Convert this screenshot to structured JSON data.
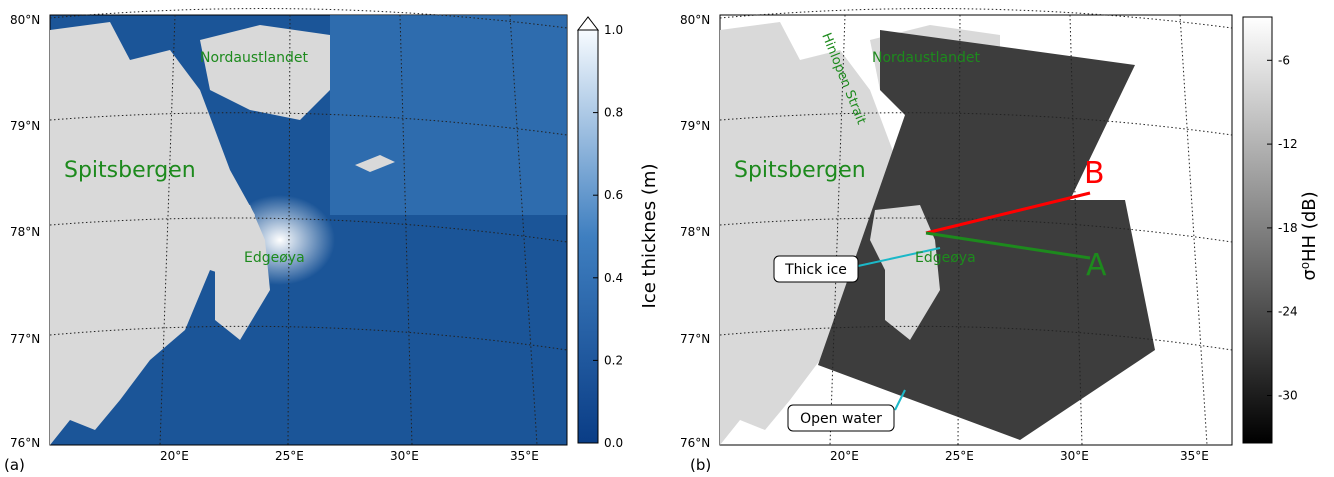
{
  "panels": [
    {
      "label": "(a)",
      "lat_labels": [
        "80°N",
        "79°N",
        "78°N",
        "77°N",
        "76°N"
      ],
      "lon_labels": [
        "20°E",
        "25°E",
        "30°E",
        "35°E"
      ],
      "places": [
        "Nordaustlandet",
        "Spitsbergen",
        "Edgeøya"
      ],
      "colorbar": {
        "title": "Ice thicknes (m)",
        "range": [
          0,
          1
        ],
        "ticks": [
          {
            "value": 0,
            "label": "0.0"
          },
          {
            "value": 0.2,
            "label": "0.2"
          },
          {
            "value": 0.4,
            "label": "0.4"
          },
          {
            "value": 0.6,
            "label": "0.6"
          },
          {
            "value": 0.8,
            "label": "0.8"
          },
          {
            "value": 1,
            "label": "1.0"
          }
        ]
      }
    },
    {
      "label": "(b)",
      "lat_labels": [
        "80°N",
        "79°N",
        "78°N",
        "77°N",
        "76°N"
      ],
      "lon_labels": [
        "20°E",
        "25°E",
        "30°E",
        "35°E"
      ],
      "places": [
        "Nordaustlandet",
        "Spitsbergen",
        "Edgeøya",
        "Hinlopen Strait"
      ],
      "annotations": [
        "Thick ice",
        "Open water",
        "A",
        "B"
      ],
      "colorbar": {
        "title": "σ⁰HH (dB)",
        "range": [
          -33.4,
          -2.9
        ],
        "ticks": [
          -6,
          -12,
          -18,
          -24,
          -30
        ]
      }
    }
  ]
}
